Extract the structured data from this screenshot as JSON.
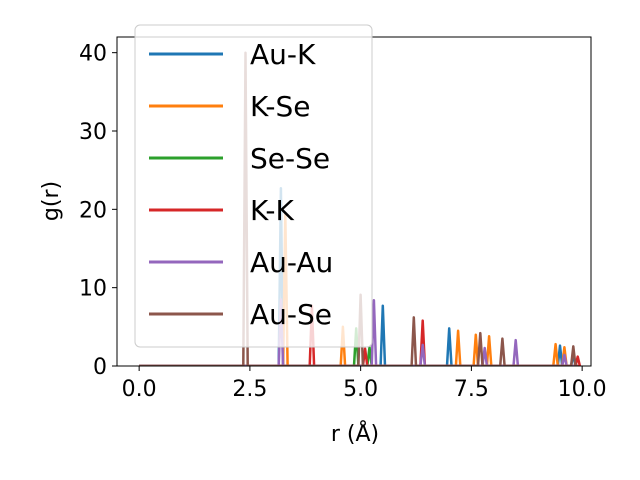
{
  "chart_data": {
    "type": "line",
    "xlabel": "r (Å)",
    "ylabel": "g(r)",
    "xlim": [
      -0.5,
      10.2
    ],
    "ylim": [
      0,
      42
    ],
    "xticks": [
      0.0,
      2.5,
      5.0,
      7.5,
      10.0
    ],
    "xtick_labels": [
      "0.0",
      "2.5",
      "5.0",
      "7.5",
      "10.0"
    ],
    "yticks": [
      0,
      10,
      20,
      30,
      40
    ],
    "ytick_labels": [
      "0",
      "10",
      "20",
      "30",
      "40"
    ],
    "grid": false,
    "legend_position": "upper-left",
    "x_range": [
      0.0,
      9.9
    ],
    "peak_width": 0.05,
    "series": [
      {
        "name": "Au-K",
        "color": "#1f77b4",
        "peaks": [
          [
            3.2,
            22.7
          ],
          [
            5.5,
            7.7
          ],
          [
            7.0,
            4.8
          ],
          [
            9.5,
            2.6
          ],
          [
            9.8,
            1.5
          ]
        ]
      },
      {
        "name": "K-Se",
        "color": "#ff7f0e",
        "peaks": [
          [
            3.3,
            19.5
          ],
          [
            4.6,
            5.0
          ],
          [
            7.2,
            4.5
          ],
          [
            7.6,
            4.0
          ],
          [
            7.9,
            3.8
          ],
          [
            9.4,
            2.8
          ],
          [
            9.6,
            2.4
          ]
        ]
      },
      {
        "name": "Se-Se",
        "color": "#2ca02c",
        "peaks": [
          [
            4.9,
            4.8
          ],
          [
            5.2,
            2.4
          ]
        ]
      },
      {
        "name": "K-K",
        "color": "#d62728",
        "peaks": [
          [
            3.9,
            7.7
          ],
          [
            5.1,
            2.2
          ],
          [
            6.4,
            5.8
          ],
          [
            9.9,
            1.2
          ]
        ]
      },
      {
        "name": "Au-Au",
        "color": "#9467bd",
        "peaks": [
          [
            3.2,
            8.5
          ],
          [
            5.3,
            8.4
          ],
          [
            6.4,
            2.7
          ],
          [
            7.8,
            2.3
          ],
          [
            8.5,
            3.3
          ],
          [
            9.6,
            1.4
          ]
        ]
      },
      {
        "name": "Au-Se",
        "color": "#8c564b",
        "peaks": [
          [
            2.4,
            40.0
          ],
          [
            5.0,
            9.1
          ],
          [
            6.2,
            6.2
          ],
          [
            7.7,
            4.2
          ],
          [
            8.2,
            3.5
          ],
          [
            9.8,
            2.5
          ]
        ]
      }
    ]
  }
}
